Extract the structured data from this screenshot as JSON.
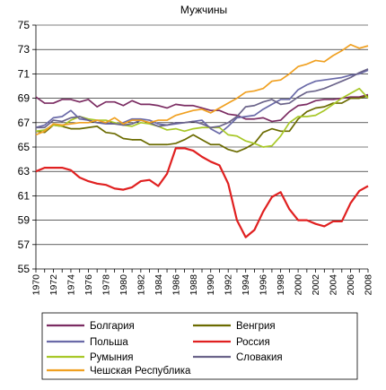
{
  "chart_data": {
    "type": "line",
    "title": "Мужчины",
    "xlabel": "",
    "ylabel": "",
    "xlim": [
      1970,
      2008
    ],
    "ylim": [
      55,
      75
    ],
    "yticks": [
      55,
      57,
      59,
      61,
      63,
      65,
      67,
      69,
      71,
      73,
      75
    ],
    "xticks": [
      1970,
      1972,
      1974,
      1976,
      1978,
      1980,
      1982,
      1984,
      1986,
      1988,
      1990,
      1992,
      1994,
      1996,
      1998,
      2000,
      2002,
      2004,
      2006,
      2008
    ],
    "grid": "horizontal",
    "legend_position": "bottom",
    "x": [
      1970,
      1971,
      1972,
      1973,
      1974,
      1975,
      1976,
      1977,
      1978,
      1979,
      1980,
      1981,
      1982,
      1983,
      1984,
      1985,
      1986,
      1987,
      1988,
      1989,
      1990,
      1991,
      1992,
      1993,
      1994,
      1995,
      1996,
      1997,
      1998,
      1999,
      2000,
      2001,
      2002,
      2003,
      2004,
      2005,
      2006,
      2007,
      2008
    ],
    "series": [
      {
        "name": "Болгария",
        "color": "#7b2c62",
        "values": [
          69.1,
          68.6,
          68.6,
          68.9,
          68.9,
          68.7,
          68.9,
          68.3,
          68.7,
          68.7,
          68.4,
          68.8,
          68.5,
          68.5,
          68.4,
          68.2,
          68.5,
          68.4,
          68.4,
          68.2,
          68.0,
          68.0,
          67.7,
          67.6,
          67.3,
          67.3,
          67.4,
          67.1,
          67.2,
          67.9,
          68.4,
          68.5,
          68.8,
          68.9,
          68.9,
          69.0,
          69.1,
          69.1,
          69.3
        ]
      },
      {
        "name": "Венгрия",
        "color": "#6b6b00",
        "values": [
          66.3,
          66.2,
          66.8,
          66.7,
          66.5,
          66.5,
          66.6,
          66.7,
          66.2,
          66.1,
          65.7,
          65.6,
          65.6,
          65.2,
          65.2,
          65.2,
          65.3,
          65.6,
          66.0,
          65.6,
          65.2,
          65.2,
          64.8,
          64.6,
          64.9,
          65.3,
          66.2,
          66.5,
          66.3,
          66.3,
          67.3,
          67.9,
          68.2,
          68.3,
          68.6,
          68.6,
          69.0,
          69.0,
          69.2
        ]
      },
      {
        "name": "Польша",
        "color": "#6a6aa8",
        "values": [
          66.6,
          66.8,
          67.4,
          67.5,
          68.0,
          67.3,
          67.2,
          67.0,
          66.9,
          66.9,
          67.0,
          67.3,
          67.3,
          67.2,
          66.9,
          66.8,
          66.9,
          67.0,
          67.1,
          67.2,
          66.5,
          66.1,
          66.7,
          67.4,
          67.5,
          67.6,
          68.1,
          68.5,
          68.9,
          68.9,
          69.7,
          70.1,
          70.4,
          70.5,
          70.6,
          70.7,
          70.9,
          71.0,
          71.3
        ]
      },
      {
        "name": "Россия",
        "color": "#e02020",
        "values": [
          63.0,
          63.3,
          63.3,
          63.3,
          63.1,
          62.5,
          62.2,
          62.0,
          61.9,
          61.6,
          61.5,
          61.7,
          62.2,
          62.3,
          61.8,
          62.8,
          64.9,
          64.9,
          64.7,
          64.2,
          63.8,
          63.5,
          62.0,
          59.0,
          57.6,
          58.2,
          59.7,
          60.9,
          61.3,
          59.9,
          59.0,
          59.0,
          58.7,
          58.5,
          58.9,
          58.9,
          60.4,
          61.4,
          61.8
        ]
      },
      {
        "name": "Румыния",
        "color": "#a8c828",
        "values": [
          66.3,
          66.4,
          66.8,
          66.7,
          67.2,
          67.5,
          67.3,
          67.2,
          67.2,
          67.0,
          66.8,
          66.7,
          67.0,
          66.9,
          66.7,
          66.4,
          66.5,
          66.3,
          66.5,
          66.6,
          66.6,
          66.6,
          66.0,
          65.9,
          65.5,
          65.3,
          65.0,
          65.1,
          65.9,
          67.0,
          67.5,
          67.5,
          67.6,
          68.0,
          68.5,
          69.0,
          69.4,
          69.8,
          69.0
        ]
      },
      {
        "name": "Словакия",
        "color": "#6b648a",
        "values": [
          66.6,
          66.6,
          67.2,
          67.1,
          67.4,
          67.5,
          67.2,
          67.0,
          67.0,
          66.9,
          66.8,
          66.9,
          67.2,
          67.0,
          66.7,
          66.8,
          67.0,
          67.0,
          67.1,
          66.9,
          66.6,
          66.7,
          67.0,
          67.5,
          68.3,
          68.4,
          68.7,
          68.9,
          68.5,
          68.6,
          69.1,
          69.5,
          69.6,
          69.8,
          70.1,
          70.4,
          70.7,
          71.1,
          71.4
        ]
      },
      {
        "name": "Чешская Республика",
        "color": "#f0a020",
        "values": [
          66.0,
          66.3,
          66.9,
          66.8,
          66.9,
          67.0,
          67.0,
          67.2,
          67.0,
          67.4,
          66.9,
          67.2,
          67.2,
          67.0,
          67.2,
          67.2,
          67.6,
          67.8,
          68.0,
          68.1,
          67.8,
          68.2,
          68.6,
          69.0,
          69.5,
          69.6,
          69.8,
          70.4,
          70.5,
          71.0,
          71.6,
          71.8,
          72.1,
          72.0,
          72.5,
          72.9,
          73.4,
          73.1,
          73.3
        ]
      }
    ]
  }
}
